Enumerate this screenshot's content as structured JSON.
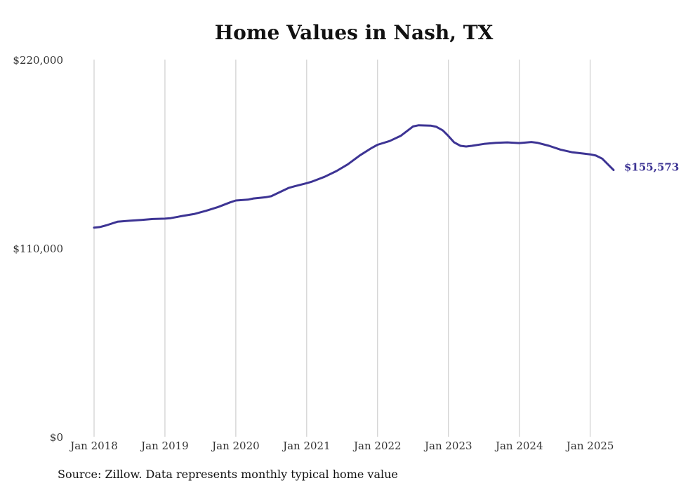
{
  "title": "Home Values in Nash, TX",
  "source": "Source: Zillow. Data represents monthly typical home value",
  "chart_data": {
    "type": "line",
    "title": "Home Values in Nash, TX",
    "xlabel": "",
    "ylabel": "",
    "ylim": [
      0,
      220000
    ],
    "y_ticks": [
      {
        "value": 0,
        "label": "$0"
      },
      {
        "value": 110000,
        "label": "$110,000"
      },
      {
        "value": 220000,
        "label": "$220,000"
      }
    ],
    "x_ticks": [
      {
        "value": 2018,
        "label": "Jan 2018"
      },
      {
        "value": 2019,
        "label": "Jan 2019"
      },
      {
        "value": 2020,
        "label": "Jan 2020"
      },
      {
        "value": 2021,
        "label": "Jan 2021"
      },
      {
        "value": 2022,
        "label": "Jan 2022"
      },
      {
        "value": 2023,
        "label": "Jan 2023"
      },
      {
        "value": 2024,
        "label": "Jan 2024"
      },
      {
        "value": 2025,
        "label": "Jan 2025"
      }
    ],
    "xlim": [
      2018,
      2025.33
    ],
    "grid": "vertical",
    "line_color": "#3d3494",
    "end_label": "$155,573",
    "series": [
      {
        "x": [
          2018.0,
          2018.08,
          2018.17,
          2018.33,
          2018.5,
          2018.67,
          2018.83,
          2019.0,
          2019.08,
          2019.25,
          2019.42,
          2019.58,
          2019.75,
          2019.92,
          2020.0,
          2020.17,
          2020.25,
          2020.42,
          2020.5,
          2020.58,
          2020.75,
          2020.83,
          2021.0,
          2021.08,
          2021.25,
          2021.42,
          2021.58,
          2021.75,
          2021.92,
          2022.0,
          2022.17,
          2022.33,
          2022.5,
          2022.58,
          2022.75,
          2022.83,
          2022.92,
          2023.0,
          2023.08,
          2023.17,
          2023.25,
          2023.33,
          2023.5,
          2023.67,
          2023.83,
          2024.0,
          2024.17,
          2024.25,
          2024.42,
          2024.58,
          2024.75,
          2024.92,
          2025.0,
          2025.08,
          2025.17,
          2025.33
        ],
        "y": [
          122000,
          122300,
          123300,
          125400,
          126000,
          126500,
          127000,
          127200,
          127500,
          128800,
          130000,
          131800,
          134000,
          136700,
          137800,
          138300,
          139000,
          139700,
          140300,
          141900,
          145200,
          146100,
          147900,
          148900,
          151600,
          155000,
          158900,
          164100,
          168500,
          170300,
          172500,
          175600,
          181000,
          181700,
          181500,
          180800,
          178700,
          175400,
          171700,
          169700,
          169300,
          169700,
          170800,
          171400,
          171700,
          171300,
          171900,
          171500,
          169700,
          167500,
          165900,
          165100,
          164700,
          164000,
          162200,
          155573
        ]
      }
    ]
  }
}
